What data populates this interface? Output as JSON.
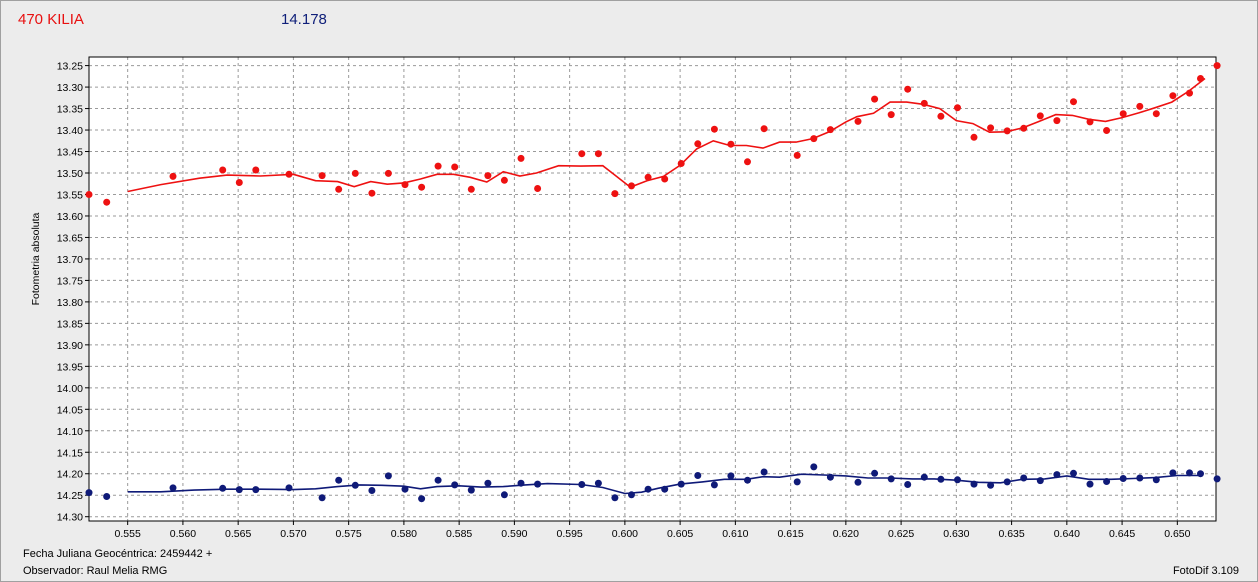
{
  "header": {
    "object_name": "470 KILIA",
    "comparison_mag": "14.178"
  },
  "footer": {
    "jd_label": "Fecha Juliana Geocéntrica: 2459442 +",
    "observer": "Observador: Raul Melia RMG",
    "version": "FotoDif 3.109"
  },
  "colors": {
    "series1": "#ee1111",
    "series2": "#0f1a78",
    "grid": "#9a9a9a",
    "plot_bg": "#ffffff"
  },
  "chart_data": {
    "type": "scatter",
    "ylabel": "Fotometria absoluta",
    "xlabel": "",
    "xlim": [
      0.5515,
      0.6535
    ],
    "ylim": [
      14.31,
      13.23
    ],
    "y_inverted": true,
    "grid": true,
    "xticks": [
      "0.555",
      "0.560",
      "0.565",
      "0.570",
      "0.575",
      "0.580",
      "0.585",
      "0.590",
      "0.595",
      "0.600",
      "0.605",
      "0.610",
      "0.615",
      "0.620",
      "0.625",
      "0.630",
      "0.635",
      "0.640",
      "0.645",
      "0.650"
    ],
    "yticks": [
      "13.25",
      "13.30",
      "13.35",
      "13.40",
      "13.45",
      "13.50",
      "13.55",
      "13.60",
      "13.65",
      "13.70",
      "13.75",
      "13.80",
      "13.85",
      "13.90",
      "13.95",
      "14.00",
      "14.05",
      "14.10",
      "14.15",
      "14.20",
      "14.25",
      "14.30"
    ],
    "series": [
      {
        "name": "470 KILIA",
        "points": [
          [
            0.5515,
            13.55
          ],
          [
            0.5531,
            13.568
          ],
          [
            0.5591,
            13.508
          ],
          [
            0.5636,
            13.493
          ],
          [
            0.5651,
            13.522
          ],
          [
            0.5666,
            13.493
          ],
          [
            0.5696,
            13.503
          ],
          [
            0.5726,
            13.506
          ],
          [
            0.5741,
            13.538
          ],
          [
            0.5756,
            13.501
          ],
          [
            0.5771,
            13.547
          ],
          [
            0.5786,
            13.501
          ],
          [
            0.5801,
            13.527
          ],
          [
            0.5816,
            13.533
          ],
          [
            0.5831,
            13.484
          ],
          [
            0.5846,
            13.486
          ],
          [
            0.5861,
            13.538
          ],
          [
            0.5876,
            13.506
          ],
          [
            0.5891,
            13.517
          ],
          [
            0.5906,
            13.466
          ],
          [
            0.5921,
            13.536
          ],
          [
            0.5961,
            13.455
          ],
          [
            0.5976,
            13.455
          ],
          [
            0.5991,
            13.548
          ],
          [
            0.6006,
            13.53
          ],
          [
            0.6021,
            13.51
          ],
          [
            0.6036,
            13.514
          ],
          [
            0.6051,
            13.478
          ],
          [
            0.6066,
            13.432
          ],
          [
            0.6081,
            13.398
          ],
          [
            0.6096,
            13.433
          ],
          [
            0.6111,
            13.474
          ],
          [
            0.6126,
            13.397
          ],
          [
            0.6156,
            13.459
          ],
          [
            0.6171,
            13.42
          ],
          [
            0.6186,
            13.399
          ],
          [
            0.6211,
            13.38
          ],
          [
            0.6226,
            13.328
          ],
          [
            0.6241,
            13.364
          ],
          [
            0.6256,
            13.305
          ],
          [
            0.6271,
            13.338
          ],
          [
            0.6286,
            13.368
          ],
          [
            0.6301,
            13.348
          ],
          [
            0.6316,
            13.417
          ],
          [
            0.6331,
            13.395
          ],
          [
            0.6346,
            13.402
          ],
          [
            0.6361,
            13.396
          ],
          [
            0.6376,
            13.367
          ],
          [
            0.6391,
            13.378
          ],
          [
            0.6406,
            13.334
          ],
          [
            0.6421,
            13.381
          ],
          [
            0.6436,
            13.401
          ],
          [
            0.6451,
            13.362
          ],
          [
            0.6466,
            13.345
          ],
          [
            0.6481,
            13.362
          ],
          [
            0.6496,
            13.32
          ],
          [
            0.6511,
            13.314
          ],
          [
            0.6521,
            13.28
          ],
          [
            0.6536,
            13.25
          ]
        ],
        "smooth": [
          [
            0.555,
            13.543
          ],
          [
            0.558,
            13.527
          ],
          [
            0.5615,
            13.512
          ],
          [
            0.564,
            13.505
          ],
          [
            0.567,
            13.507
          ],
          [
            0.57,
            13.503
          ],
          [
            0.572,
            13.518
          ],
          [
            0.574,
            13.52
          ],
          [
            0.5755,
            13.532
          ],
          [
            0.577,
            13.52
          ],
          [
            0.5785,
            13.526
          ],
          [
            0.58,
            13.523
          ],
          [
            0.5815,
            13.514
          ],
          [
            0.583,
            13.503
          ],
          [
            0.5845,
            13.503
          ],
          [
            0.586,
            13.51
          ],
          [
            0.5875,
            13.521
          ],
          [
            0.589,
            13.497
          ],
          [
            0.5905,
            13.507
          ],
          [
            0.592,
            13.5
          ],
          [
            0.594,
            13.483
          ],
          [
            0.596,
            13.484
          ],
          [
            0.598,
            13.483
          ],
          [
            0.599,
            13.503
          ],
          [
            0.6005,
            13.533
          ],
          [
            0.602,
            13.518
          ],
          [
            0.6035,
            13.508
          ],
          [
            0.605,
            13.482
          ],
          [
            0.6065,
            13.444
          ],
          [
            0.608,
            13.425
          ],
          [
            0.6095,
            13.436
          ],
          [
            0.611,
            13.436
          ],
          [
            0.6125,
            13.442
          ],
          [
            0.614,
            13.428
          ],
          [
            0.6155,
            13.428
          ],
          [
            0.617,
            13.42
          ],
          [
            0.6185,
            13.404
          ],
          [
            0.62,
            13.381
          ],
          [
            0.621,
            13.369
          ],
          [
            0.6225,
            13.361
          ],
          [
            0.624,
            13.335
          ],
          [
            0.6255,
            13.335
          ],
          [
            0.627,
            13.34
          ],
          [
            0.6285,
            13.35
          ],
          [
            0.63,
            13.378
          ],
          [
            0.6315,
            13.385
          ],
          [
            0.633,
            13.405
          ],
          [
            0.6345,
            13.404
          ],
          [
            0.636,
            13.395
          ],
          [
            0.6375,
            13.38
          ],
          [
            0.639,
            13.364
          ],
          [
            0.6405,
            13.366
          ],
          [
            0.642,
            13.375
          ],
          [
            0.6435,
            13.38
          ],
          [
            0.645,
            13.371
          ],
          [
            0.6465,
            13.36
          ],
          [
            0.648,
            13.348
          ],
          [
            0.6495,
            13.335
          ],
          [
            0.651,
            13.31
          ],
          [
            0.6525,
            13.28
          ]
        ]
      },
      {
        "name": "14.178",
        "points": [
          [
            0.5515,
            14.244
          ],
          [
            0.5531,
            14.253
          ],
          [
            0.5591,
            14.233
          ],
          [
            0.5636,
            14.234
          ],
          [
            0.5651,
            14.237
          ],
          [
            0.5666,
            14.237
          ],
          [
            0.5696,
            14.233
          ],
          [
            0.5726,
            14.256
          ],
          [
            0.5741,
            14.215
          ],
          [
            0.5756,
            14.227
          ],
          [
            0.5771,
            14.239
          ],
          [
            0.5786,
            14.205
          ],
          [
            0.5801,
            14.236
          ],
          [
            0.5816,
            14.258
          ],
          [
            0.5831,
            14.215
          ],
          [
            0.5846,
            14.226
          ],
          [
            0.5861,
            14.238
          ],
          [
            0.5876,
            14.222
          ],
          [
            0.5891,
            14.249
          ],
          [
            0.5906,
            14.222
          ],
          [
            0.5921,
            14.224
          ],
          [
            0.5961,
            14.225
          ],
          [
            0.5976,
            14.222
          ],
          [
            0.5991,
            14.256
          ],
          [
            0.6006,
            14.249
          ],
          [
            0.6021,
            14.236
          ],
          [
            0.6036,
            14.236
          ],
          [
            0.6051,
            14.224
          ],
          [
            0.6066,
            14.204
          ],
          [
            0.6081,
            14.226
          ],
          [
            0.6096,
            14.205
          ],
          [
            0.6111,
            14.215
          ],
          [
            0.6126,
            14.196
          ],
          [
            0.6156,
            14.219
          ],
          [
            0.6171,
            14.184
          ],
          [
            0.6186,
            14.208
          ],
          [
            0.6211,
            14.22
          ],
          [
            0.6226,
            14.199
          ],
          [
            0.6241,
            14.212
          ],
          [
            0.6256,
            14.225
          ],
          [
            0.6271,
            14.208
          ],
          [
            0.6286,
            14.213
          ],
          [
            0.6301,
            14.214
          ],
          [
            0.6316,
            14.224
          ],
          [
            0.6331,
            14.227
          ],
          [
            0.6346,
            14.219
          ],
          [
            0.6361,
            14.21
          ],
          [
            0.6376,
            14.216
          ],
          [
            0.6391,
            14.202
          ],
          [
            0.6406,
            14.199
          ],
          [
            0.6421,
            14.224
          ],
          [
            0.6436,
            14.218
          ],
          [
            0.6451,
            14.211
          ],
          [
            0.6466,
            14.21
          ],
          [
            0.6481,
            14.214
          ],
          [
            0.6496,
            14.198
          ],
          [
            0.6511,
            14.198
          ],
          [
            0.6521,
            14.2
          ],
          [
            0.6536,
            14.212
          ]
        ],
        "smooth": [
          [
            0.555,
            14.242
          ],
          [
            0.558,
            14.242
          ],
          [
            0.561,
            14.238
          ],
          [
            0.564,
            14.236
          ],
          [
            0.567,
            14.236
          ],
          [
            0.57,
            14.237
          ],
          [
            0.572,
            14.235
          ],
          [
            0.574,
            14.23
          ],
          [
            0.576,
            14.226
          ],
          [
            0.578,
            14.227
          ],
          [
            0.58,
            14.229
          ],
          [
            0.5815,
            14.235
          ],
          [
            0.583,
            14.23
          ],
          [
            0.585,
            14.228
          ],
          [
            0.587,
            14.231
          ],
          [
            0.589,
            14.23
          ],
          [
            0.591,
            14.226
          ],
          [
            0.593,
            14.223
          ],
          [
            0.596,
            14.225
          ],
          [
            0.598,
            14.232
          ],
          [
            0.6,
            14.246
          ],
          [
            0.6015,
            14.243
          ],
          [
            0.603,
            14.234
          ],
          [
            0.605,
            14.224
          ],
          [
            0.607,
            14.219
          ],
          [
            0.609,
            14.213
          ],
          [
            0.611,
            14.213
          ],
          [
            0.6125,
            14.207
          ],
          [
            0.614,
            14.208
          ],
          [
            0.616,
            14.201
          ],
          [
            0.618,
            14.203
          ],
          [
            0.62,
            14.205
          ],
          [
            0.622,
            14.21
          ],
          [
            0.624,
            14.21
          ],
          [
            0.626,
            14.212
          ],
          [
            0.628,
            14.212
          ],
          [
            0.63,
            14.215
          ],
          [
            0.632,
            14.22
          ],
          [
            0.634,
            14.221
          ],
          [
            0.636,
            14.213
          ],
          [
            0.638,
            14.212
          ],
          [
            0.64,
            14.205
          ],
          [
            0.642,
            14.213
          ],
          [
            0.644,
            14.213
          ],
          [
            0.646,
            14.211
          ],
          [
            0.648,
            14.209
          ],
          [
            0.65,
            14.204
          ],
          [
            0.652,
            14.204
          ]
        ]
      }
    ]
  }
}
